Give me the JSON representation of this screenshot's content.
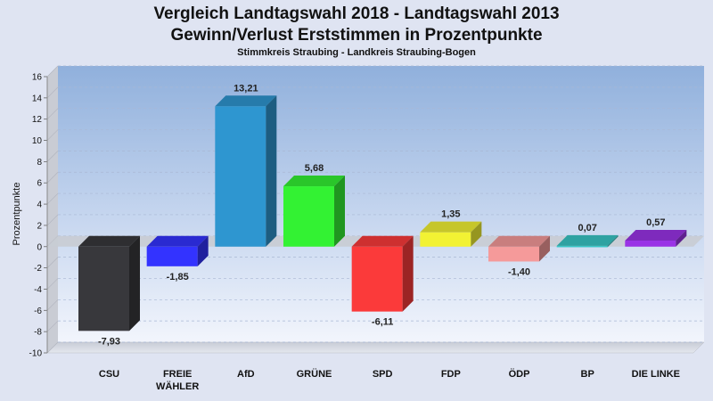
{
  "chart_data": {
    "type": "bar",
    "title_line1": "Vergleich Landtagswahl 2018 - Landtagswahl 2013",
    "title_line2": "Gewinn/Verlust Erststimmen in Prozentpunkte",
    "subtitle": "Stimmkreis Straubing - Landkreis Straubing-Bogen",
    "ylabel": "Prozentpunkte",
    "xlabel": "",
    "ylim": [
      -10,
      16
    ],
    "yticks": [
      16,
      14,
      12,
      10,
      8,
      6,
      4,
      2,
      0,
      -2,
      -4,
      -6,
      -8,
      -10
    ],
    "grid": true,
    "categories": [
      "CSU",
      "FREIE\nWÄHLER",
      "AfD",
      "GRÜNE",
      "SPD",
      "FDP",
      "ÖDP",
      "BP",
      "DIE LINKE"
    ],
    "values": [
      -7.93,
      -1.85,
      13.21,
      5.68,
      -6.11,
      1.35,
      -1.4,
      0.07,
      0.57
    ],
    "value_labels": [
      "-7,93",
      "-1,85",
      "13,21",
      "5,68",
      "-6,11",
      "1,35",
      "-1,40",
      "0,07",
      "0,57"
    ],
    "colors": [
      "#38383c",
      "#3333ff",
      "#2e96d0",
      "#33f233",
      "#fb3a3a",
      "#f2f233",
      "#f59a9a",
      "#38c6c6",
      "#9a33e6"
    ]
  }
}
